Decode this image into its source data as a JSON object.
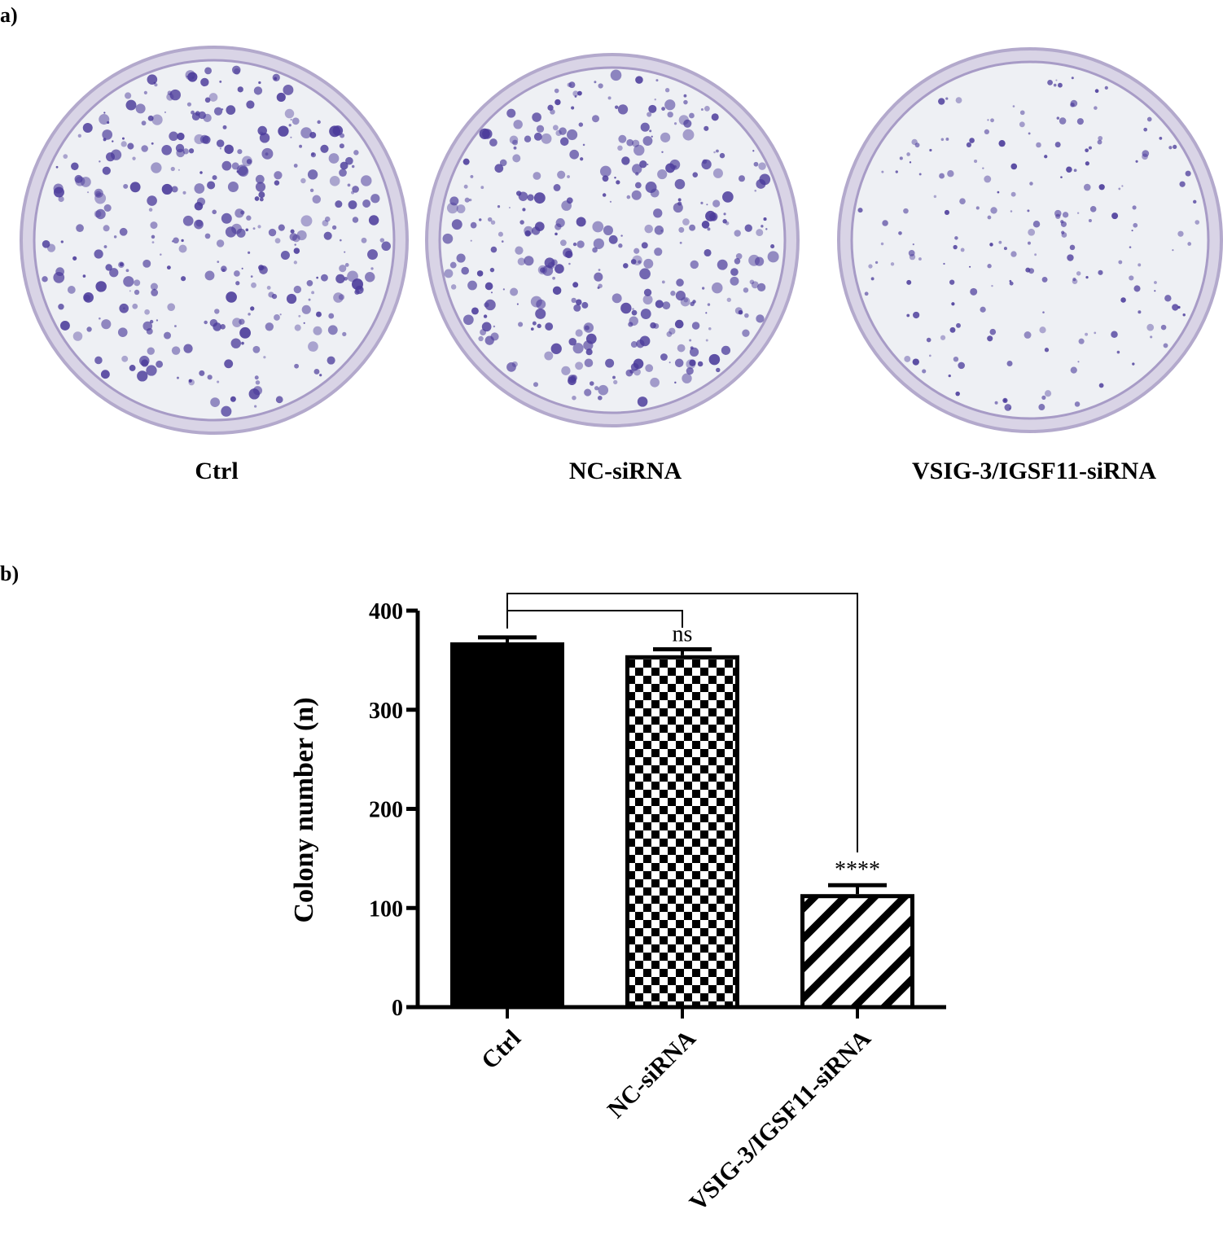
{
  "panels": {
    "a": "a)",
    "b": "b)"
  },
  "plates": [
    {
      "label": "Ctrl",
      "colony_density": "high"
    },
    {
      "label": "NC-siRNA",
      "colony_density": "high"
    },
    {
      "label": "VSIG-3/IGSF11-siRNA",
      "colony_density": "low"
    }
  ],
  "colors": {
    "stain": "#4a3a9a",
    "plate_bg": "#eef0f4",
    "bars": "#000000"
  },
  "chart_data": {
    "type": "bar",
    "title": "",
    "xlabel": "",
    "ylabel": "Colony number (n)",
    "categories": [
      "Ctrl",
      "NC-siRNA",
      "VSIG-3/IGSF11-siRNA"
    ],
    "values": [
      368,
      355,
      114
    ],
    "error": [
      5,
      6,
      9
    ],
    "patterns": [
      "solid",
      "checkerboard",
      "diagonal-stripes"
    ],
    "ylim": [
      0,
      400
    ],
    "yticks": [
      0,
      100,
      200,
      300,
      400
    ],
    "grid": false,
    "significance": [
      {
        "from": "Ctrl",
        "to": "NC-siRNA",
        "label": "ns"
      },
      {
        "from": "Ctrl",
        "to": "VSIG-3/IGSF11-siRNA",
        "label": "****"
      }
    ]
  }
}
